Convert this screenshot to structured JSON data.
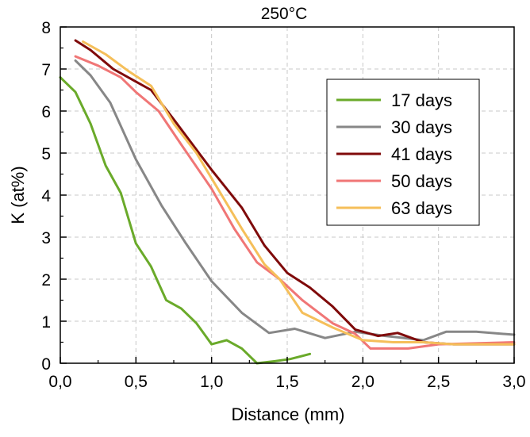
{
  "chart_data": {
    "type": "line",
    "title": "250°C",
    "xlabel": "Distance (mm)",
    "ylabel": "K (at%)",
    "xlim": [
      0.0,
      3.0
    ],
    "ylim": [
      0,
      8
    ],
    "x_ticks": [
      "0,0",
      "0,5",
      "1,0",
      "1,5",
      "2,0",
      "2,5",
      "3,0"
    ],
    "x_tick_values": [
      0.0,
      0.5,
      1.0,
      1.5,
      2.0,
      2.5,
      3.0
    ],
    "y_ticks": [
      "0",
      "1",
      "2",
      "3",
      "4",
      "5",
      "6",
      "7",
      "8"
    ],
    "y_tick_values": [
      0,
      1,
      2,
      3,
      4,
      5,
      6,
      7,
      8
    ],
    "grid": true,
    "legend_position": "upper-right",
    "series": [
      {
        "name": "17 days",
        "color": "#6aaa2a",
        "x": [
          0.0,
          0.1,
          0.2,
          0.3,
          0.4,
          0.5,
          0.6,
          0.7,
          0.8,
          0.9,
          1.0,
          1.1,
          1.2,
          1.3,
          1.42,
          1.52,
          1.65
        ],
        "y": [
          6.8,
          6.45,
          5.7,
          4.7,
          4.05,
          2.85,
          2.3,
          1.5,
          1.3,
          0.95,
          0.45,
          0.55,
          0.35,
          0.0,
          0.05,
          0.1,
          0.22
        ]
      },
      {
        "name": "30 days",
        "color": "#878787",
        "x": [
          0.1,
          0.2,
          0.33,
          0.5,
          0.67,
          0.83,
          1.0,
          1.2,
          1.38,
          1.55,
          1.75,
          1.95,
          2.15,
          2.4,
          2.55,
          2.75,
          3.0
        ],
        "y": [
          7.2,
          6.85,
          6.2,
          4.85,
          3.75,
          2.85,
          1.95,
          1.2,
          0.72,
          0.82,
          0.6,
          0.75,
          0.65,
          0.55,
          0.75,
          0.75,
          0.68
        ]
      },
      {
        "name": "41 days",
        "color": "#7f0a0a",
        "x": [
          0.1,
          0.2,
          0.35,
          0.5,
          0.6,
          0.75,
          1.0,
          1.2,
          1.35,
          1.5,
          1.65,
          1.8,
          1.95,
          2.1,
          2.23,
          2.4,
          2.6,
          3.0
        ],
        "y": [
          7.68,
          7.45,
          7.0,
          6.7,
          6.5,
          5.8,
          4.6,
          3.7,
          2.8,
          2.15,
          1.8,
          1.35,
          0.8,
          0.65,
          0.72,
          0.5,
          0.45,
          0.45
        ]
      },
      {
        "name": "50 days",
        "color": "#f07676",
        "x": [
          0.1,
          0.25,
          0.4,
          0.5,
          0.65,
          0.8,
          1.0,
          1.15,
          1.3,
          1.45,
          1.6,
          1.8,
          1.95,
          2.05,
          2.3,
          2.5,
          3.0
        ],
        "y": [
          7.3,
          7.08,
          6.8,
          6.45,
          6.0,
          5.2,
          4.15,
          3.2,
          2.4,
          2.0,
          1.5,
          0.95,
          0.7,
          0.35,
          0.35,
          0.45,
          0.5
        ]
      },
      {
        "name": "63 days",
        "color": "#f5bf5a",
        "x": [
          0.15,
          0.3,
          0.45,
          0.6,
          0.75,
          0.9,
          1.05,
          1.2,
          1.35,
          1.45,
          1.6,
          1.8,
          2.0,
          2.2,
          2.4,
          2.6,
          3.0
        ],
        "y": [
          7.65,
          7.35,
          6.95,
          6.6,
          5.7,
          5.0,
          4.1,
          3.2,
          2.35,
          2.0,
          1.2,
          0.85,
          0.55,
          0.5,
          0.5,
          0.45,
          0.45
        ]
      }
    ]
  }
}
